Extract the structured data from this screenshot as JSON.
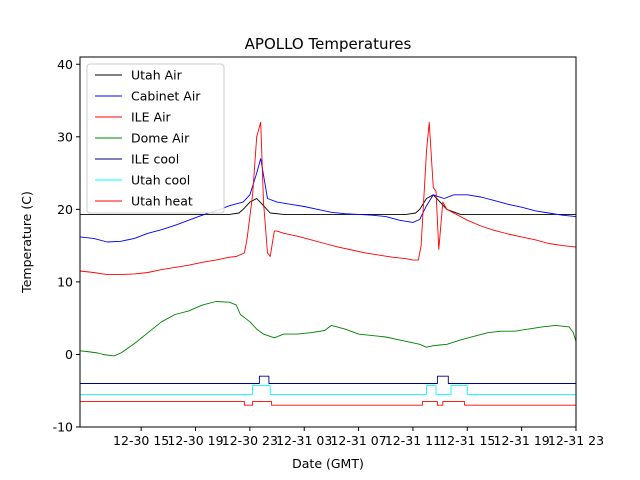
{
  "chart_data": {
    "type": "line",
    "title": "APOLLO Temperatures",
    "xlabel": "Date (GMT)",
    "ylabel": "Temperature (C)",
    "xlim": [
      10.5,
      47.0
    ],
    "ylim": [
      -10,
      41
    ],
    "x_unit": "hours since 12-30 00:00 GMT",
    "xticks": [
      {
        "value": 15,
        "label": "12-30 15"
      },
      {
        "value": 19,
        "label": "12-30 19"
      },
      {
        "value": 23,
        "label": "12-30 23"
      },
      {
        "value": 27,
        "label": "12-31 03"
      },
      {
        "value": 31,
        "label": "12-31 07"
      },
      {
        "value": 35,
        "label": "12-31 11"
      },
      {
        "value": 39,
        "label": "12-31 15"
      },
      {
        "value": 43,
        "label": "12-31 19"
      },
      {
        "value": 47,
        "label": "12-31 23"
      }
    ],
    "yticks": [
      -10,
      0,
      10,
      20,
      30,
      40
    ],
    "legend_position": "top-left",
    "series": [
      {
        "name": "Utah Air",
        "color": "#000000",
        "x": [
          10.5,
          11.5,
          12.5,
          13.5,
          14.5,
          15.5,
          16.5,
          17.5,
          18.5,
          19.5,
          20.5,
          21.5,
          22.2,
          22.5,
          23.0,
          23.5,
          24.0,
          24.5,
          25.5,
          26.5,
          27.5,
          28.5,
          29.5,
          30.5,
          31.5,
          32.5,
          33.5,
          34.5,
          35.2,
          35.5,
          36.0,
          36.5,
          37.0,
          37.5,
          38.5,
          39.5,
          40.5,
          41.5,
          42.5,
          43.5,
          44.5,
          45.5,
          46.5,
          47.0
        ],
        "y": [
          19.3,
          19.3,
          19.3,
          19.3,
          19.3,
          19.3,
          19.3,
          19.3,
          19.3,
          19.3,
          19.3,
          19.3,
          19.5,
          20.0,
          21.0,
          21.5,
          20.5,
          19.5,
          19.3,
          19.3,
          19.3,
          19.3,
          19.3,
          19.3,
          19.3,
          19.3,
          19.3,
          19.3,
          19.5,
          20.0,
          21.5,
          22.0,
          21.0,
          20.0,
          19.3,
          19.3,
          19.3,
          19.3,
          19.3,
          19.3,
          19.3,
          19.3,
          19.3,
          19.3
        ]
      },
      {
        "name": "Cabinet Air",
        "color": "#0000ff",
        "x": [
          10.5,
          11.5,
          12.5,
          13.5,
          14.5,
          15.5,
          16.5,
          17.5,
          18.5,
          19.5,
          20.5,
          21.5,
          22.5,
          23.0,
          23.5,
          23.8,
          24.3,
          25.0,
          26.0,
          27.0,
          28.0,
          29.0,
          30.0,
          31.0,
          32.0,
          33.0,
          34.0,
          35.0,
          35.5,
          36.0,
          36.5,
          36.8,
          37.3,
          38.0,
          39.0,
          40.0,
          41.0,
          42.0,
          43.0,
          44.0,
          45.0,
          46.0,
          47.0
        ],
        "y": [
          16.2,
          16.0,
          15.5,
          15.6,
          16.0,
          16.7,
          17.2,
          17.8,
          18.5,
          19.2,
          19.8,
          20.5,
          21.0,
          22.0,
          25.0,
          27.0,
          21.5,
          21.0,
          20.7,
          20.4,
          20.0,
          19.6,
          19.4,
          19.3,
          19.2,
          19.0,
          18.5,
          18.2,
          18.6,
          20.5,
          22.0,
          21.8,
          21.5,
          22.0,
          22.0,
          21.7,
          21.2,
          20.7,
          20.3,
          19.8,
          19.5,
          19.2,
          19.0
        ]
      },
      {
        "name": "ILE Air",
        "color": "#ff0000",
        "x": [
          10.5,
          11.5,
          12.5,
          13.5,
          14.5,
          15.5,
          16.5,
          17.5,
          18.5,
          19.5,
          20.5,
          21.5,
          22.0,
          22.6,
          22.8,
          23.2,
          23.5,
          23.8,
          24.0,
          24.3,
          24.5,
          24.8,
          25.0,
          25.5,
          26.5,
          27.5,
          28.5,
          29.5,
          30.5,
          31.5,
          32.5,
          33.5,
          34.5,
          35.0,
          35.4,
          35.6,
          36.0,
          36.2,
          36.5,
          36.7,
          36.9,
          37.2,
          37.5,
          38.0,
          39.0,
          40.0,
          41.0,
          42.0,
          43.0,
          44.0,
          45.0,
          46.0,
          47.0
        ],
        "y": [
          11.5,
          11.3,
          11.0,
          11.0,
          11.1,
          11.3,
          11.7,
          12.0,
          12.3,
          12.7,
          13.0,
          13.4,
          13.5,
          14.0,
          16.0,
          22.0,
          30.0,
          32.0,
          21.0,
          14.0,
          13.5,
          17.0,
          17.0,
          16.7,
          16.3,
          15.8,
          15.3,
          14.8,
          14.4,
          14.0,
          13.7,
          13.4,
          13.2,
          13.0,
          13.0,
          15.0,
          28.0,
          32.0,
          23.0,
          22.5,
          14.5,
          21.0,
          20.0,
          19.5,
          18.5,
          17.7,
          17.1,
          16.6,
          16.2,
          15.8,
          15.3,
          15.0,
          14.8
        ]
      },
      {
        "name": "Dome Air",
        "color": "#008000",
        "x": [
          10.5,
          11.0,
          11.8,
          12.2,
          13.0,
          13.5,
          14.5,
          15.5,
          16.5,
          17.5,
          18.5,
          19.5,
          20.5,
          21.5,
          22.0,
          22.3,
          23.0,
          23.5,
          24.0,
          24.8,
          25.5,
          26.5,
          27.5,
          28.5,
          29.0,
          30.0,
          31.0,
          32.0,
          33.0,
          34.0,
          35.0,
          35.5,
          36.0,
          36.5,
          37.0,
          37.5,
          38.5,
          39.5,
          40.5,
          41.5,
          42.5,
          43.5,
          44.5,
          45.5,
          46.5,
          46.8,
          47.0
        ],
        "y": [
          0.5,
          0.4,
          0.2,
          0.0,
          -0.2,
          0.2,
          1.5,
          3.0,
          4.5,
          5.5,
          6.0,
          6.8,
          7.3,
          7.2,
          6.8,
          5.5,
          4.5,
          3.5,
          2.8,
          2.3,
          2.8,
          2.8,
          3.0,
          3.3,
          4.0,
          3.5,
          2.8,
          2.6,
          2.4,
          2.0,
          1.6,
          1.4,
          1.0,
          1.2,
          1.3,
          1.4,
          2.0,
          2.5,
          3.0,
          3.2,
          3.2,
          3.5,
          3.8,
          4.0,
          3.8,
          3.0,
          1.8
        ]
      },
      {
        "name": "ILE cool",
        "color": "#000080",
        "x": [
          10.5,
          23.7,
          23.7,
          24.4,
          24.4,
          36.8,
          36.8,
          37.6,
          37.6,
          47.0
        ],
        "y": [
          -4.0,
          -4.0,
          -3.0,
          -3.0,
          -4.0,
          -4.0,
          -3.0,
          -3.0,
          -4.0,
          -4.0
        ]
      },
      {
        "name": "Utah cool",
        "color": "#00ffff",
        "x": [
          10.5,
          23.2,
          23.2,
          24.5,
          24.5,
          36.0,
          36.0,
          36.7,
          36.7,
          37.8,
          37.8,
          39.0,
          39.0,
          47.0
        ],
        "y": [
          -5.5,
          -5.5,
          -4.3,
          -4.3,
          -5.5,
          -5.5,
          -4.3,
          -4.3,
          -5.5,
          -5.5,
          -4.3,
          -4.3,
          -5.5,
          -5.5
        ]
      },
      {
        "name": "Utah heat",
        "color": "#ff0000",
        "x": [
          10.5,
          22.6,
          22.6,
          23.2,
          23.2,
          24.6,
          24.6,
          35.7,
          35.7,
          36.8,
          36.8,
          37.2,
          37.2,
          38.8,
          38.8,
          47.0
        ],
        "y": [
          -6.5,
          -6.5,
          -7.0,
          -7.0,
          -6.5,
          -6.5,
          -7.0,
          -7.0,
          -6.5,
          -6.5,
          -7.0,
          -7.0,
          -6.5,
          -6.5,
          -7.0,
          -7.0
        ]
      }
    ]
  }
}
